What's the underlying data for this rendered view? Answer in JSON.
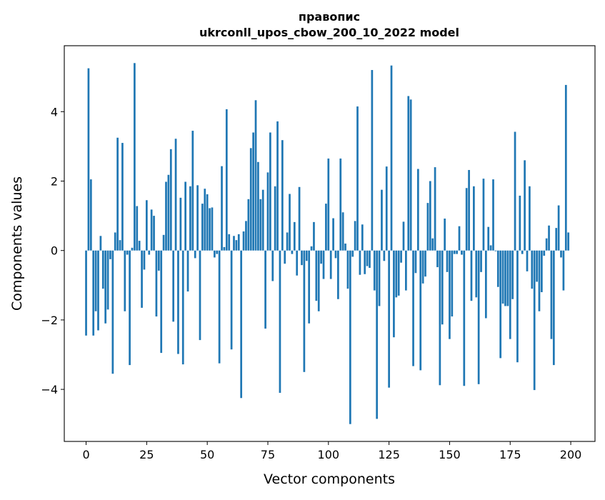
{
  "chart_data": {
    "type": "bar",
    "title": [
      "правопис",
      "ukrconll_upos_cbow_200_10_2022 model"
    ],
    "xlabel": "Vector components",
    "ylabel": "Components values",
    "xlim": [
      -9,
      210
    ],
    "ylim": [
      -5.5,
      5.9
    ],
    "xticks": [
      0,
      25,
      50,
      75,
      100,
      125,
      150,
      175,
      200
    ],
    "xtick_labels": [
      "0",
      "25",
      "50",
      "75",
      "100",
      "125",
      "150",
      "175",
      "200"
    ],
    "yticks": [
      -4,
      -2,
      0,
      2,
      4
    ],
    "ytick_labels": [
      "−4",
      "−2",
      "0",
      "2",
      "4"
    ],
    "grid": false,
    "color": "#1f77b4",
    "values": [
      -2.45,
      5.25,
      2.05,
      -2.45,
      -1.75,
      -2.3,
      0.42,
      -1.1,
      -2.1,
      -1.7,
      -0.25,
      -3.55,
      0.52,
      3.25,
      0.3,
      3.1,
      -1.75,
      -0.12,
      -3.3,
      0.08,
      5.4,
      1.28,
      0.28,
      -1.65,
      -0.55,
      1.45,
      -0.12,
      1.18,
      1.0,
      -1.9,
      -0.58,
      -2.95,
      0.45,
      1.98,
      2.18,
      2.92,
      -2.05,
      3.22,
      -2.98,
      1.52,
      -3.28,
      1.98,
      -1.18,
      1.85,
      3.45,
      -0.22,
      1.88,
      -2.58,
      1.35,
      1.78,
      1.62,
      1.22,
      1.24,
      -0.2,
      -0.1,
      -3.25,
      2.43,
      0.1,
      4.07,
      0.47,
      -2.85,
      0.42,
      0.3,
      0.47,
      -4.25,
      0.55,
      0.85,
      1.48,
      2.95,
      3.4,
      4.33,
      2.55,
      1.48,
      1.75,
      -2.25,
      2.25,
      3.4,
      -0.88,
      1.85,
      3.72,
      -4.1,
      3.18,
      -0.38,
      0.52,
      1.63,
      -0.1,
      0.82,
      -0.72,
      1.83,
      -0.42,
      -3.5,
      -0.3,
      -2.1,
      0.12,
      0.82,
      -1.45,
      -1.75,
      -0.38,
      -0.82,
      1.35,
      2.65,
      -0.82,
      0.93,
      -0.22,
      -1.4,
      2.65,
      1.1,
      0.2,
      -1.1,
      -5.0,
      -0.18,
      0.85,
      4.15,
      -0.7,
      0.75,
      -0.68,
      -0.45,
      -0.5,
      5.2,
      -1.15,
      -4.85,
      -1.6,
      1.75,
      -0.3,
      2.42,
      -3.95,
      5.33,
      -2.5,
      -1.35,
      -1.3,
      -0.35,
      0.83,
      -1.15,
      4.45,
      4.35,
      -3.33,
      -0.65,
      2.35,
      -3.45,
      -0.95,
      -0.75,
      1.37,
      2.0,
      0.35,
      2.4,
      -0.48,
      -3.88,
      -2.13,
      0.92,
      -0.62,
      -2.55,
      -1.9,
      -0.1,
      -0.1,
      0.7,
      -0.12,
      -3.9,
      1.8,
      2.32,
      -1.45,
      1.85,
      -1.35,
      -3.85,
      -0.62,
      2.07,
      -1.95,
      0.68,
      0.15,
      2.05,
      -0.02,
      -1.05,
      -3.1,
      -1.53,
      -1.6,
      -1.6,
      -2.55,
      -1.4,
      3.42,
      -3.22,
      1.58,
      -0.1,
      2.6,
      -0.6,
      1.85,
      -1.1,
      -4.02,
      -0.9,
      -1.75,
      -1.2,
      -0.15,
      0.35,
      0.72,
      -2.55,
      -3.3,
      0.65,
      1.3,
      -0.2,
      -1.15,
      4.77,
      0.52
    ]
  }
}
